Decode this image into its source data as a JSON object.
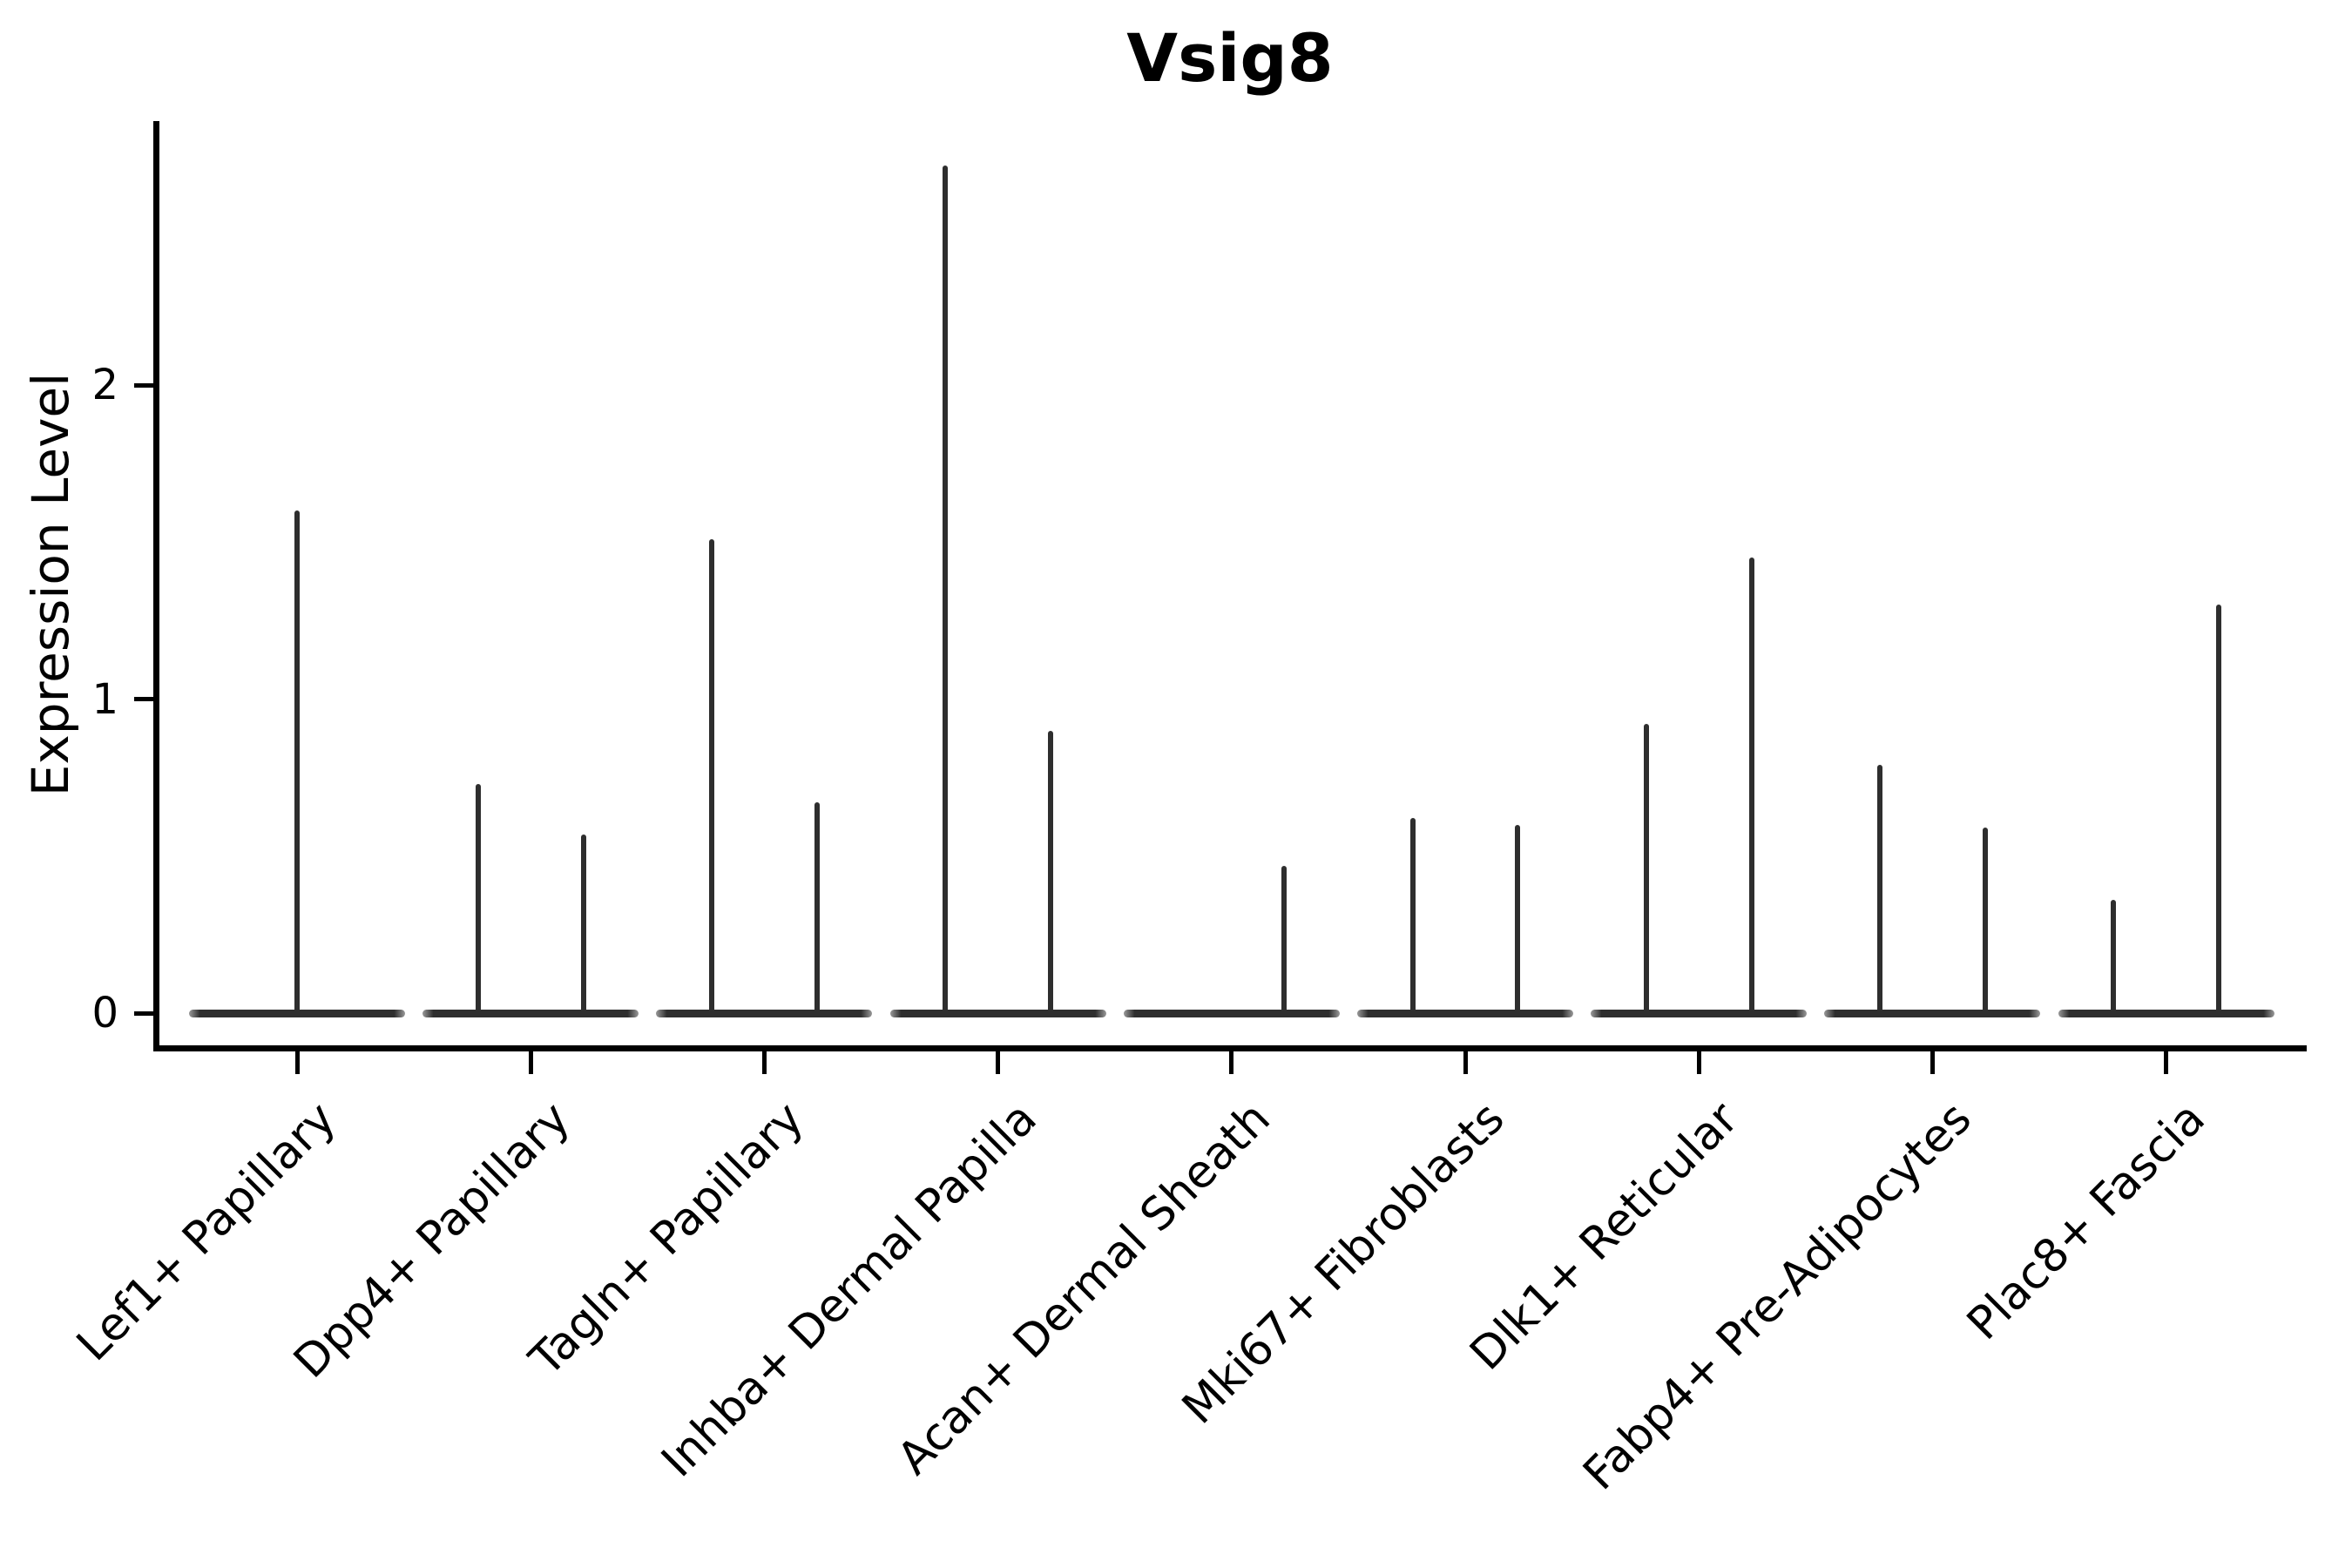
{
  "title": "Vsig8",
  "y_axis": {
    "label": "Expression Level",
    "tick_labels": [
      "0",
      "1",
      "2"
    ]
  },
  "chart_data": {
    "type": "violin",
    "title": "Vsig8",
    "xlabel": "",
    "ylabel": "Expression Level",
    "yticks": [
      0,
      1,
      2
    ],
    "ylim": [
      0,
      2.84
    ],
    "grid": false,
    "legend": "none",
    "x_tick_rotation_deg": 45,
    "categories": [
      "Lef1+ Papillary",
      "Dpp4+ Papillary",
      "Tagln+ Papillary",
      "Inhba+ Dermal Papilla",
      "Acan+ Dermal Sheath",
      "Mki67+ Fibroblasts",
      "Dlk1+ Reticular",
      "Fabp4+ Pre-Adipocytes",
      "Plac8+ Fascia"
    ],
    "description": "Each category shows a violin collapsed to a flat bar at expression 0 with thin vertical spikes reaching the maximum expression of the rare expressing cells.",
    "violins": [
      {
        "category": "Lef1+ Papillary",
        "baseline_value": 0,
        "spikes": [
          {
            "pos": "center",
            "value": 1.6
          }
        ]
      },
      {
        "category": "Dpp4+ Papillary",
        "baseline_value": 0,
        "spikes": [
          {
            "pos": "left",
            "value": 0.73
          },
          {
            "pos": "right",
            "value": 0.57
          }
        ]
      },
      {
        "category": "Tagln+ Papillary",
        "baseline_value": 0,
        "spikes": [
          {
            "pos": "left",
            "value": 1.51
          },
          {
            "pos": "right",
            "value": 0.67
          }
        ]
      },
      {
        "category": "Inhba+ Dermal Papilla",
        "baseline_value": 0,
        "spikes": [
          {
            "pos": "left",
            "value": 2.7
          },
          {
            "pos": "right",
            "value": 0.9
          }
        ]
      },
      {
        "category": "Acan+ Dermal Sheath",
        "baseline_value": 0,
        "spikes": [
          {
            "pos": "right",
            "value": 0.47
          }
        ]
      },
      {
        "category": "Mki67+ Fibroblasts",
        "baseline_value": 0,
        "spikes": [
          {
            "pos": "left",
            "value": 0.62
          },
          {
            "pos": "right",
            "value": 0.6
          }
        ]
      },
      {
        "category": "Dlk1+ Reticular",
        "baseline_value": 0,
        "spikes": [
          {
            "pos": "left",
            "value": 0.92
          },
          {
            "pos": "right",
            "value": 1.45
          }
        ]
      },
      {
        "category": "Fabp4+ Pre-Adipocytes",
        "baseline_value": 0,
        "spikes": [
          {
            "pos": "left",
            "value": 0.79
          },
          {
            "pos": "right",
            "value": 0.59
          }
        ]
      },
      {
        "category": "Plac8+ Fascia",
        "baseline_value": 0,
        "spikes": [
          {
            "pos": "left",
            "value": 0.36
          },
          {
            "pos": "right",
            "value": 1.3
          }
        ]
      }
    ],
    "colors": {
      "violin_stroke": "#2e2e2e",
      "axis": "#000000",
      "background": "#ffffff"
    }
  }
}
